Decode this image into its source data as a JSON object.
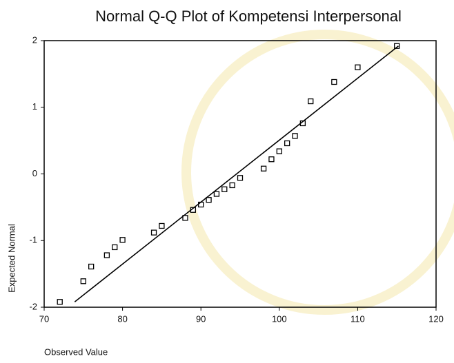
{
  "chart_data": {
    "type": "scatter",
    "title": "Normal Q-Q Plot of Kompetensi Interpersonal",
    "xlabel": "Observed Value",
    "ylabel": "Expected Normal",
    "series": [
      {
        "type": "scatter",
        "color": "#000000",
        "x": [
          72,
          75,
          76,
          78,
          79,
          80,
          84,
          85,
          88,
          89,
          90,
          91,
          92,
          93,
          94,
          95,
          98,
          99,
          100,
          101,
          102,
          103,
          104,
          107,
          110,
          115
        ],
        "values": [
          -1.92,
          -1.61,
          -1.39,
          -1.22,
          -1.1,
          -0.99,
          -0.88,
          -0.78,
          -0.66,
          -0.54,
          -0.46,
          -0.39,
          -0.3,
          -0.23,
          -0.17,
          -0.06,
          0.08,
          0.22,
          0.34,
          0.46,
          0.57,
          0.76,
          1.09,
          1.38,
          1.6,
          1.92
        ]
      },
      {
        "type": "line",
        "color": "#000000",
        "x": [
          73.9,
          115.2
        ],
        "values": [
          -1.92,
          1.92
        ]
      }
    ],
    "xlim": [
      70,
      120
    ],
    "xticks": [
      70,
      80,
      90,
      100,
      110,
      120
    ],
    "ylim": [
      -2,
      2
    ],
    "yticks": [
      -2,
      -1,
      0,
      1,
      2
    ]
  }
}
